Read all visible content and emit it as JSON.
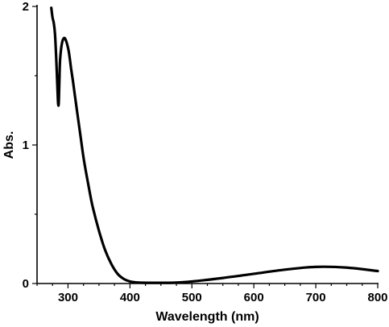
{
  "chart_data": {
    "type": "line",
    "title": "",
    "xlabel": "Wavelength (nm)",
    "ylabel": "Abs.",
    "xlim": [
      250,
      800
    ],
    "ylim": [
      0,
      2
    ],
    "x_ticks": [
      300,
      400,
      500,
      600,
      700,
      800
    ],
    "y_ticks": [
      0,
      1,
      2
    ],
    "x_tick_labels": [
      "300",
      "400",
      "500",
      "600",
      "700",
      "800"
    ],
    "y_tick_labels": [
      "0",
      "1",
      "2"
    ],
    "grid": false,
    "legend": "none",
    "series": [
      {
        "color": "#000000",
        "x": [
          273,
          275,
          277,
          279,
          281,
          283,
          284,
          285,
          286,
          287,
          289,
          291,
          293,
          295,
          297,
          299,
          301,
          303,
          305,
          308,
          311,
          315,
          320,
          325,
          330,
          335,
          340,
          350,
          360,
          370,
          380,
          390,
          400,
          410,
          420,
          430,
          450,
          470,
          500,
          550,
          600,
          650,
          700,
          750,
          800
        ],
        "values": [
          1.99,
          1.92,
          1.88,
          1.8,
          1.62,
          1.4,
          1.3,
          1.3,
          1.45,
          1.6,
          1.7,
          1.75,
          1.77,
          1.77,
          1.75,
          1.72,
          1.68,
          1.62,
          1.55,
          1.46,
          1.36,
          1.23,
          1.07,
          0.91,
          0.78,
          0.66,
          0.55,
          0.38,
          0.24,
          0.14,
          0.07,
          0.033,
          0.015,
          0.008,
          0.006,
          0.005,
          0.005,
          0.006,
          0.015,
          0.04,
          0.07,
          0.1,
          0.12,
          0.115,
          0.09
        ]
      }
    ]
  }
}
